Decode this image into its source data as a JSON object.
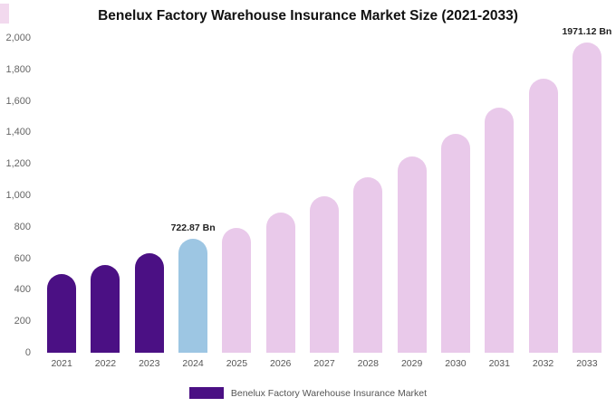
{
  "title": "Benelux Factory Warehouse Insurance Market Size (2021-2033)",
  "legend": {
    "label": "Benelux Factory Warehouse Insurance Market",
    "swatch_color": "#4b1084"
  },
  "colors": {
    "historical_bar": "#4b1084",
    "current_year_bar": "#9dc6e3",
    "forecast_bar": "#e9c9ea",
    "corner_artifact": "#f2d9ee",
    "background": "#ffffff"
  },
  "chart_data": {
    "type": "bar",
    "title": "Benelux Factory Warehouse Insurance Market Size (2021-2033)",
    "xlabel": "",
    "ylabel": "",
    "categories": [
      "2021",
      "2022",
      "2023",
      "2024",
      "2025",
      "2026",
      "2027",
      "2028",
      "2029",
      "2030",
      "2031",
      "2032",
      "2033"
    ],
    "values": [
      500,
      560,
      630,
      722.87,
      795,
      890,
      995,
      1115,
      1245,
      1390,
      1555,
      1740,
      1971.12
    ],
    "unit": "Bn",
    "ylim": [
      0,
      2000
    ],
    "y_ticks": [
      "0",
      "200",
      "400",
      "600",
      "800",
      "1,000",
      "1,200",
      "1,400",
      "1,600",
      "1,800",
      "2,000"
    ],
    "bar_colors": [
      "#4b1084",
      "#4b1084",
      "#4b1084",
      "#9dc6e3",
      "#e9c9ea",
      "#e9c9ea",
      "#e9c9ea",
      "#e9c9ea",
      "#e9c9ea",
      "#e9c9ea",
      "#e9c9ea",
      "#e9c9ea",
      "#e9c9ea"
    ],
    "annotations": [
      {
        "index": 3,
        "text": "722.87 Bn"
      },
      {
        "index": 12,
        "text": "1971.12 Bn"
      }
    ],
    "grid": false,
    "legend_position": "bottom"
  }
}
